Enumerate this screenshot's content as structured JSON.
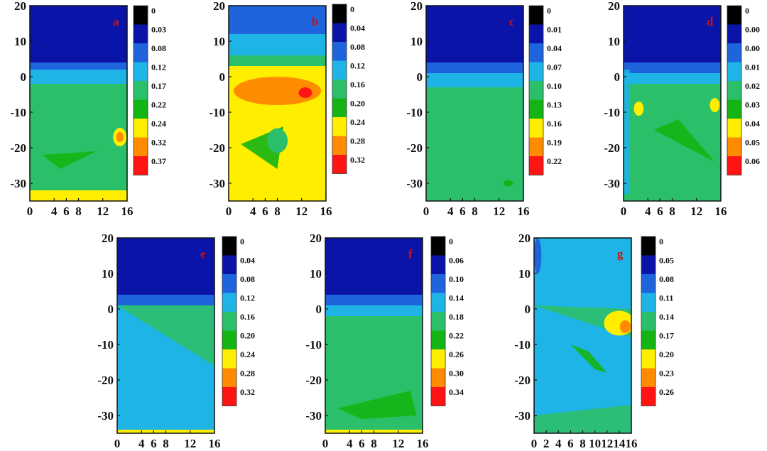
{
  "colors": {
    "level": [
      "#000000",
      "#0a14a8",
      "#1e64dc",
      "#1eb4e6",
      "#2cbf6a",
      "#14b414",
      "#ffee00",
      "#ff8c00",
      "#ff1414"
    ],
    "axis": "#111111",
    "panel_label": "#c81414"
  },
  "chart_data": [
    {
      "type": "heatmap",
      "panel_label": "a",
      "xlim": [
        0,
        16
      ],
      "ylim": [
        -35,
        20
      ],
      "x_ticks": [
        "0",
        "4",
        "6",
        "8",
        "12",
        "16"
      ],
      "x_tick_values": [
        0,
        4,
        6,
        8,
        12,
        16
      ],
      "y_ticks": [
        "20",
        "10",
        "0",
        "-10",
        "-20",
        "-30"
      ],
      "y_tick_values": [
        20,
        10,
        0,
        -10,
        -20,
        -30
      ],
      "colorbar_labels": [
        "0",
        "0.03",
        "0.08",
        "0.12",
        "0.17",
        "0.22",
        "0.24",
        "0.32",
        "0.37"
      ],
      "bands": [
        {
          "y_top": 20,
          "y_bottom": 4,
          "level": 1
        },
        {
          "y_top": 4,
          "y_bottom": 2,
          "level": 2
        },
        {
          "y_top": 2,
          "y_bottom": -2,
          "level": 3
        },
        {
          "y_top": -2,
          "y_bottom": -32,
          "level": 4
        },
        {
          "y_top": -32,
          "y_bottom": -35,
          "level": 6
        }
      ],
      "spots": [
        {
          "x": 14.8,
          "y": -17,
          "rx": 1.1,
          "ry": 2.6,
          "level": 6
        },
        {
          "x": 14.8,
          "y": -17,
          "rx": 0.6,
          "ry": 1.4,
          "level": 7
        }
      ],
      "regions": [
        {
          "points": [
            [
              1,
              -5
            ],
            [
              10,
              -22
            ],
            [
              0,
              -23
            ]
          ],
          "level": 4
        },
        {
          "points": [
            [
              2,
              -22
            ],
            [
              11,
              -21
            ],
            [
              5,
              -26
            ]
          ],
          "level": 5
        }
      ]
    },
    {
      "type": "heatmap",
      "panel_label": "b",
      "xlim": [
        0,
        16
      ],
      "ylim": [
        -35,
        20
      ],
      "x_ticks": [
        "0",
        "4",
        "6",
        "8",
        "12",
        "16"
      ],
      "x_tick_values": [
        0,
        4,
        6,
        8,
        12,
        16
      ],
      "y_ticks": [
        "20",
        "10",
        "0",
        "-10",
        "-20",
        "-30"
      ],
      "y_tick_values": [
        20,
        10,
        0,
        -10,
        -20,
        -30
      ],
      "colorbar_labels": [
        "0",
        "0.04",
        "0.08",
        "0.12",
        "0.16",
        "0.20",
        "0.24",
        "0.28",
        "0.32"
      ],
      "bands": [
        {
          "y_top": 20,
          "y_bottom": 12,
          "level": 2
        },
        {
          "y_top": 12,
          "y_bottom": 6,
          "level": 3
        },
        {
          "y_top": 6,
          "y_bottom": 3,
          "level": 4
        },
        {
          "y_top": 3,
          "y_bottom": -35,
          "level": 6
        }
      ],
      "spots": [
        {
          "x": 8,
          "y": -4,
          "rx": 7.2,
          "ry": 4,
          "level": 7
        },
        {
          "x": 12.6,
          "y": -4.5,
          "rx": 1.1,
          "ry": 1.5,
          "level": 8
        },
        {
          "x": 8,
          "y": -18,
          "rx": 1.7,
          "ry": 3.5,
          "level": 4
        }
      ],
      "regions": [
        {
          "points": [
            [
              2,
              -19
            ],
            [
              9,
              -14
            ],
            [
              8,
              -26
            ]
          ],
          "level": 5
        }
      ]
    },
    {
      "type": "heatmap",
      "panel_label": "c",
      "xlim": [
        0,
        16
      ],
      "ylim": [
        -35,
        20
      ],
      "x_ticks": [
        "0",
        "4",
        "6",
        "8",
        "12",
        "16"
      ],
      "x_tick_values": [
        0,
        4,
        6,
        8,
        12,
        16
      ],
      "y_ticks": [
        "20",
        "10",
        "0",
        "-10",
        "-20",
        "-30"
      ],
      "y_tick_values": [
        20,
        10,
        0,
        -10,
        -20,
        -30
      ],
      "colorbar_labels": [
        "0",
        "0.01",
        "0.04",
        "0.07",
        "0.10",
        "0.13",
        "0.16",
        "0.19",
        "0.22"
      ],
      "bands": [
        {
          "y_top": 20,
          "y_bottom": 4,
          "level": 1
        },
        {
          "y_top": 4,
          "y_bottom": 1,
          "level": 2
        },
        {
          "y_top": 1,
          "y_bottom": -3,
          "level": 3
        },
        {
          "y_top": -3,
          "y_bottom": -35,
          "level": 4
        }
      ],
      "spots": [
        {
          "x": 13.5,
          "y": -30,
          "rx": 0.8,
          "ry": 0.9,
          "level": 5
        }
      ],
      "regions": []
    },
    {
      "type": "heatmap",
      "panel_label": "d",
      "xlim": [
        0,
        16
      ],
      "ylim": [
        -35,
        20
      ],
      "x_ticks": [
        "0",
        "4",
        "6",
        "8",
        "12",
        "16"
      ],
      "x_tick_values": [
        0,
        4,
        6,
        8,
        12,
        16
      ],
      "y_ticks": [
        "20",
        "10",
        "0",
        "-10",
        "-20",
        "-30"
      ],
      "y_tick_values": [
        20,
        10,
        0,
        -10,
        -20,
        -30
      ],
      "colorbar_labels": [
        "0",
        "0.00",
        "0.00",
        "0.01",
        "0.02",
        "0.03",
        "0.04",
        "0.05",
        "0.06"
      ],
      "bands": [
        {
          "y_top": 20,
          "y_bottom": 4,
          "level": 1
        },
        {
          "y_top": 4,
          "y_bottom": 1,
          "level": 2
        },
        {
          "y_top": 1,
          "y_bottom": -2,
          "level": 3
        },
        {
          "y_top": -2,
          "y_bottom": -35,
          "level": 4
        }
      ],
      "spots": [
        {
          "x": 2.5,
          "y": -9,
          "rx": 0.8,
          "ry": 2,
          "level": 6
        },
        {
          "x": 15,
          "y": -8,
          "rx": 0.8,
          "ry": 2,
          "level": 6
        }
      ],
      "regions": [
        {
          "points": [
            [
              5,
              -15
            ],
            [
              9,
              -12
            ],
            [
              15,
              -24
            ]
          ],
          "level": 5
        },
        {
          "points": [
            [
              0,
              2
            ],
            [
              1,
              2
            ],
            [
              1,
              -33
            ],
            [
              0,
              -33
            ]
          ],
          "level": 3
        }
      ]
    },
    {
      "type": "heatmap",
      "panel_label": "e",
      "xlim": [
        0,
        16
      ],
      "ylim": [
        -35,
        20
      ],
      "x_ticks": [
        "0",
        "4",
        "6",
        "8",
        "12",
        "16"
      ],
      "x_tick_values": [
        0,
        4,
        6,
        8,
        12,
        16
      ],
      "y_ticks": [
        "20",
        "10",
        "0",
        "-10",
        "-20",
        "-30"
      ],
      "y_tick_values": [
        20,
        10,
        0,
        -10,
        -20,
        -30
      ],
      "colorbar_labels": [
        "0",
        "0.04",
        "0.08",
        "0.12",
        "0.16",
        "0.20",
        "0.24",
        "0.28",
        "0.32"
      ],
      "bands": [
        {
          "y_top": 20,
          "y_bottom": 4,
          "level": 1
        },
        {
          "y_top": 4,
          "y_bottom": 1,
          "level": 2
        },
        {
          "y_top": 1,
          "y_bottom": -34,
          "level": 3
        },
        {
          "y_top": -34,
          "y_bottom": -35,
          "level": 6
        }
      ],
      "spots": [],
      "regions": [
        {
          "points": [
            [
              0,
              1
            ],
            [
              16,
              1
            ],
            [
              16,
              -16
            ],
            [
              0,
              1
            ]
          ],
          "level": 4
        }
      ]
    },
    {
      "type": "heatmap",
      "panel_label": "f",
      "xlim": [
        0,
        16
      ],
      "ylim": [
        -35,
        20
      ],
      "x_ticks": [
        "0",
        "4",
        "6",
        "8",
        "12",
        "16"
      ],
      "x_tick_values": [
        0,
        4,
        6,
        8,
        12,
        16
      ],
      "y_ticks": [
        "20",
        "10",
        "0",
        "-10",
        "-20",
        "-30"
      ],
      "y_tick_values": [
        20,
        10,
        0,
        -10,
        -20,
        -30
      ],
      "colorbar_labels": [
        "0",
        "0.06",
        "0.10",
        "0.14",
        "0.18",
        "0.22",
        "0.26",
        "0.30",
        "0.34"
      ],
      "bands": [
        {
          "y_top": 20,
          "y_bottom": 4,
          "level": 1
        },
        {
          "y_top": 4,
          "y_bottom": 1,
          "level": 2
        },
        {
          "y_top": 1,
          "y_bottom": -2,
          "level": 3
        },
        {
          "y_top": -2,
          "y_bottom": -34,
          "level": 4
        },
        {
          "y_top": -34,
          "y_bottom": -35,
          "level": 6
        }
      ],
      "spots": [],
      "regions": [
        {
          "points": [
            [
              2,
              -28
            ],
            [
              14,
              -23
            ],
            [
              15,
              -30
            ],
            [
              6,
              -31
            ]
          ],
          "level": 5
        }
      ]
    },
    {
      "type": "heatmap",
      "panel_label": "g",
      "xlim": [
        0,
        16
      ],
      "ylim": [
        -35,
        20
      ],
      "x_ticks": [
        "0",
        "2",
        "4",
        "6",
        "8",
        "10",
        "12",
        "14",
        "16"
      ],
      "x_tick_values": [
        0,
        2,
        4,
        6,
        8,
        10,
        12,
        14,
        16
      ],
      "y_ticks": [
        "20",
        "10",
        "0",
        "-10",
        "-20",
        "-30"
      ],
      "y_tick_values": [
        20,
        10,
        0,
        -10,
        -20,
        -30
      ],
      "colorbar_labels": [
        "0",
        "0.05",
        "0.08",
        "0.11",
        "0.14",
        "0.17",
        "0.20",
        "0.23",
        "0.26"
      ],
      "bands": [
        {
          "y_top": 20,
          "y_bottom": -35,
          "level": 3
        }
      ],
      "spots": [
        {
          "x": 14,
          "y": -4,
          "rx": 2.5,
          "ry": 3.5,
          "level": 6
        },
        {
          "x": 15,
          "y": -5,
          "rx": 0.9,
          "ry": 1.8,
          "level": 7
        },
        {
          "x": 0.6,
          "y": 15,
          "rx": 0.6,
          "ry": 5,
          "level": 2
        }
      ],
      "regions": [
        {
          "points": [
            [
              0,
              1
            ],
            [
              16,
              0
            ],
            [
              16,
              -8
            ],
            [
              0,
              1
            ]
          ],
          "level": 4
        },
        {
          "points": [
            [
              6,
              -10
            ],
            [
              9,
              -12
            ],
            [
              12,
              -18
            ],
            [
              10,
              -17
            ]
          ],
          "level": 5
        },
        {
          "points": [
            [
              0,
              -30
            ],
            [
              16,
              -27
            ],
            [
              16,
              -35
            ],
            [
              0,
              -35
            ]
          ],
          "level": 4
        }
      ]
    }
  ]
}
